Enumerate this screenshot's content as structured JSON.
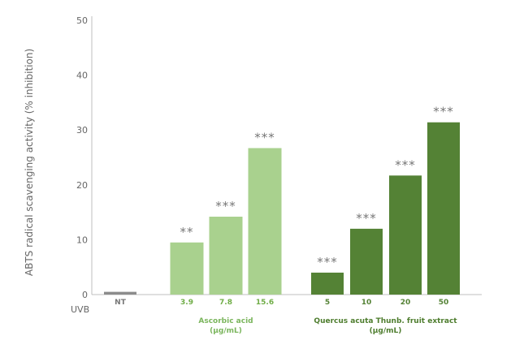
{
  "chart_data": {
    "type": "bar",
    "ylabel": "ABTS radical scavenging activity (% inhibition)",
    "ylim": [
      0,
      50
    ],
    "yticks": [
      "0",
      "10",
      "20",
      "30",
      "40",
      "50"
    ],
    "row_label": "UVB",
    "grid": false,
    "categories": [
      "NT",
      "3.9",
      "7.8",
      "15.6",
      "5",
      "10",
      "20",
      "50"
    ],
    "values": [
      0.5,
      9.5,
      14.2,
      26.7,
      4,
      12,
      21.7,
      31.4
    ],
    "significance": [
      "",
      "**",
      "***",
      "***",
      "***",
      "***",
      "***",
      "***"
    ],
    "groups": [
      {
        "line1": "Ascorbic acid",
        "line2": "(μg/mL)",
        "start": 1,
        "end": 3,
        "color": "#7ab55c"
      },
      {
        "line1": "Quercus acuta Thunb. fruit extract",
        "line2": "(μg/mL)",
        "start": 4,
        "end": 7,
        "color": "#4e7d2e"
      }
    ],
    "colors": {
      "control": "#8c8c8c",
      "ascorbic": "#a9d18e",
      "extract": "#548235",
      "control_label": "#777777",
      "ascorbic_label": "#70ad47",
      "extract_label": "#548235"
    }
  }
}
